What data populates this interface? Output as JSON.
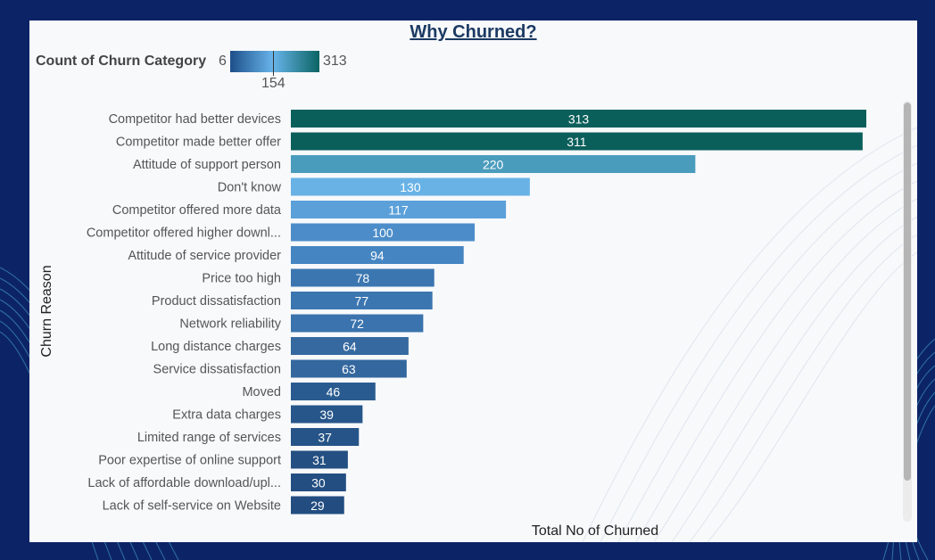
{
  "title": "Why Churned?",
  "legend": {
    "title": "Count of Churn Category",
    "min": "6",
    "mid": "154",
    "max": "313"
  },
  "colors": {
    "low": "#1d4f8a",
    "mid": "#68b4ea",
    "high": "#0b6463"
  },
  "chart_data": {
    "type": "bar",
    "orientation": "horizontal",
    "categories": [
      "Competitor had better devices",
      "Competitor made better offer",
      "Attitude of support person",
      "Don't know",
      "Competitor offered more data",
      "Competitor offered higher downl...",
      "Attitude of service provider",
      "Price too high",
      "Product dissatisfaction",
      "Network reliability",
      "Long distance charges",
      "Service dissatisfaction",
      "Moved",
      "Extra data charges",
      "Limited range of services",
      "Poor expertise of online support",
      "Lack of affordable download/upl...",
      "Lack of self-service on Website"
    ],
    "values": [
      313,
      311,
      220,
      130,
      117,
      100,
      94,
      78,
      77,
      72,
      64,
      63,
      46,
      39,
      37,
      31,
      30,
      29
    ],
    "bar_colors": [
      "#0b5f5b",
      "#0b5f5b",
      "#4a9cbd",
      "#68b2e6",
      "#5ba0d9",
      "#4c8dc9",
      "#4585c2",
      "#3b76b0",
      "#3b76b0",
      "#3a73ad",
      "#35699f",
      "#34679e",
      "#2a5b90",
      "#27568a",
      "#265488",
      "#244f82",
      "#234e82",
      "#234d81"
    ],
    "title": "Why Churned?",
    "xlabel": "Total No of Churned",
    "ylabel": "Churn Reason",
    "xlim": [
      0,
      313
    ],
    "grid": false,
    "legend": "top-left"
  }
}
